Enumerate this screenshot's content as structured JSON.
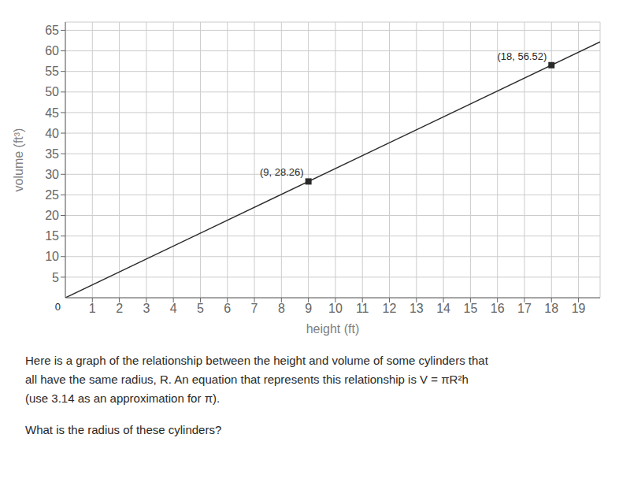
{
  "chart_data": {
    "type": "line",
    "xlabel": "height (ft)",
    "ylabel": "volume (ft³)",
    "xlim": [
      0,
      19.8
    ],
    "ylim": [
      0,
      67
    ],
    "xticks": [
      1,
      2,
      3,
      4,
      5,
      6,
      7,
      8,
      9,
      10,
      11,
      12,
      13,
      14,
      15,
      16,
      17,
      18,
      19
    ],
    "yticks": [
      5,
      10,
      15,
      20,
      25,
      30,
      35,
      40,
      45,
      50,
      55,
      60,
      65
    ],
    "grid": true,
    "series": [
      {
        "type": "line",
        "color": "#2a2a2a",
        "line_style": "solid",
        "x": [
          0,
          19.8
        ],
        "values": [
          0,
          62.172
        ]
      },
      {
        "type": "scatter",
        "color": "#2a2a2a",
        "marker": "square",
        "x": [
          9,
          18
        ],
        "values": [
          28.26,
          56.52
        ]
      }
    ],
    "annotations": [
      {
        "text": "(9, 28.26)",
        "x": 9,
        "y": 28.26
      },
      {
        "text": "(18, 56.52)",
        "x": 18,
        "y": 56.52
      },
      {
        "text": "0",
        "x": 0,
        "y": 0
      }
    ],
    "caption": [
      "Here is a graph of the relationship between the height and volume of some cylinders that",
      "all have the same radius, R. An equation that represents this relationship is V = πR²h",
      "(use 3.14 as an approximation for π).",
      "What is the radius of these cylinders?"
    ]
  }
}
